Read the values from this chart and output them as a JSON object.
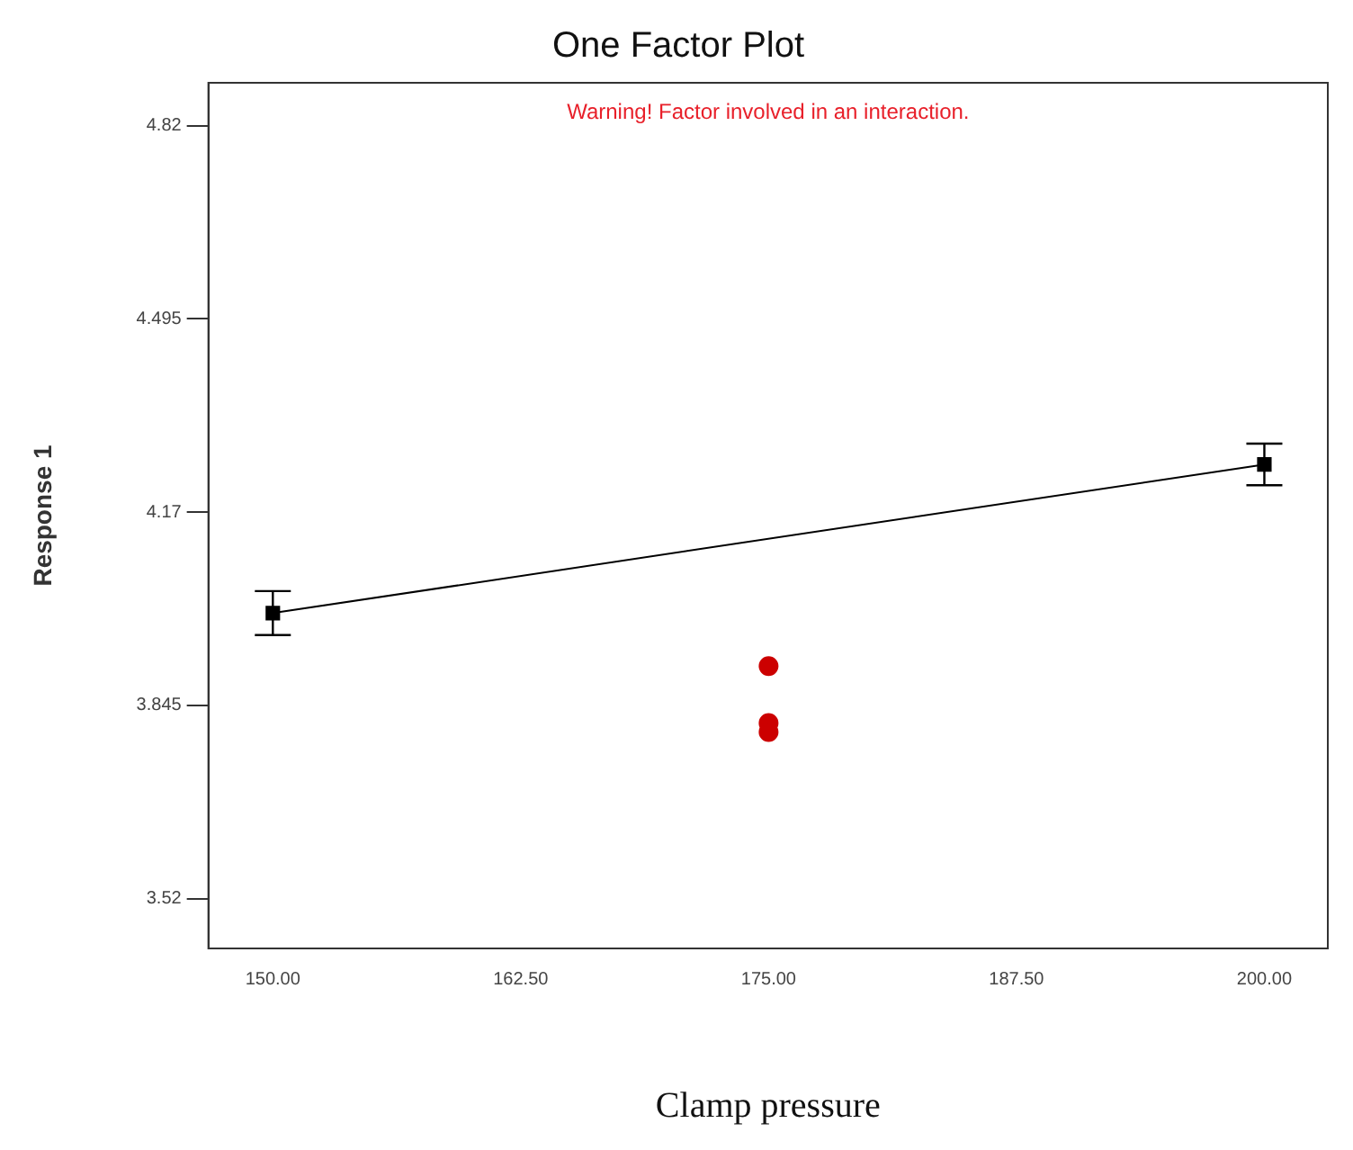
{
  "chart_data": {
    "type": "scatter",
    "title": "One Factor Plot",
    "xlabel": "Clamp pressure",
    "ylabel": "Response 1",
    "annotations": [
      "Warning! Factor involved in an interaction."
    ],
    "xlim": [
      146.75,
      203.2
    ],
    "xticks": [
      {
        "value": 150,
        "label": "150.00"
      },
      {
        "value": 162.5,
        "label": "162.50"
      },
      {
        "value": 175,
        "label": "175.00"
      },
      {
        "value": 187.5,
        "label": "187.50"
      },
      {
        "value": 200,
        "label": "200.00"
      }
    ],
    "ylim": [
      3.436,
      4.892
    ],
    "yticks": [
      3.52,
      3.845,
      4.17,
      4.495,
      4.82
    ],
    "grid": false,
    "legend": false,
    "series": [
      {
        "type": "line",
        "color": "#000000",
        "marker": "square",
        "x": [
          150,
          200
        ],
        "values": [
          4.0,
          4.25
        ],
        "errors": [
          0.037,
          0.035
        ]
      },
      {
        "color": "#cc0000",
        "marker": "circle",
        "x": [
          175,
          175,
          175
        ],
        "values": [
          3.911,
          3.815,
          3.8
        ]
      }
    ]
  }
}
